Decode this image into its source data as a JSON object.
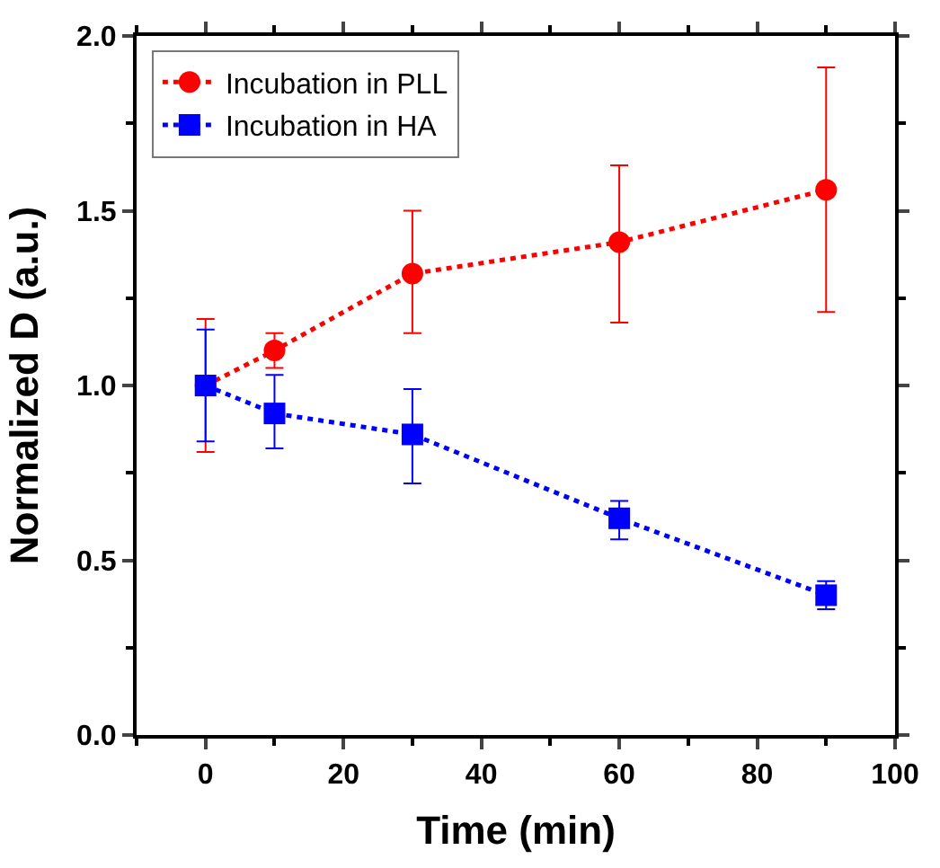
{
  "chart_data": {
    "type": "line",
    "xlabel": "Time (min)",
    "ylabel": "Normalized D (a.u.)",
    "x": [
      0,
      10,
      30,
      60,
      90
    ],
    "xlim": [
      -10,
      100
    ],
    "xticks": [
      0,
      20,
      40,
      60,
      80,
      100
    ],
    "ylim": [
      0,
      2
    ],
    "yticks": [
      {
        "value": 0,
        "label": "0.0"
      },
      {
        "value": 0.5,
        "label": "0.5"
      },
      {
        "value": 1,
        "label": "1.0"
      },
      {
        "value": 1.5,
        "label": "1.5"
      },
      {
        "value": 2,
        "label": "2.0"
      }
    ],
    "series": [
      {
        "name": "Incubation in PLL",
        "color": "#ff0000",
        "marker": "circle",
        "values": [
          1.0,
          1.1,
          1.32,
          1.41,
          1.56
        ],
        "errors": [
          [
            0.81,
            1.19
          ],
          [
            1.05,
            1.15
          ],
          [
            1.15,
            1.5
          ],
          [
            1.18,
            1.63
          ],
          [
            1.21,
            1.91
          ]
        ]
      },
      {
        "name": "Incubation in HA",
        "color": "#0000ff",
        "marker": "square",
        "values": [
          1.0,
          0.92,
          0.86,
          0.62,
          0.4
        ],
        "errors": [
          [
            0.84,
            1.16
          ],
          [
            0.82,
            1.03
          ],
          [
            0.72,
            0.99
          ],
          [
            0.56,
            0.67
          ],
          [
            0.36,
            0.44
          ]
        ]
      }
    ],
    "line_style": "dotted",
    "legend": "top left"
  }
}
